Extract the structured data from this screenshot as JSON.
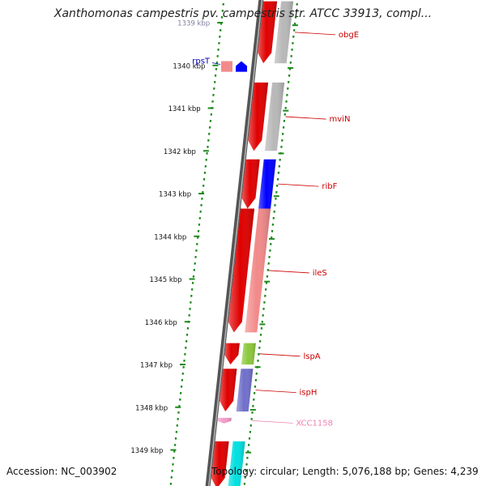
{
  "title": "Xanthomonas campestris pv. campestris str. ATCC 33913, compl...",
  "footer": {
    "accession": "Accession: NC_003902",
    "summary": "Topology: circular; Length: 5,076,188 bp; Genes: 4,239"
  },
  "ruler": {
    "unit": "kbp",
    "ticks": [
      {
        "kbp": 1339,
        "label": "1339 kbp",
        "partial": true
      },
      {
        "kbp": 1340,
        "label": "1340 kbp"
      },
      {
        "kbp": 1341,
        "label": "1341 kbp"
      },
      {
        "kbp": 1342,
        "label": "1342 kbp"
      },
      {
        "kbp": 1343,
        "label": "1343 kbp"
      },
      {
        "kbp": 1344,
        "label": "1344 kbp"
      },
      {
        "kbp": 1345,
        "label": "1345 kbp"
      },
      {
        "kbp": 1346,
        "label": "1346 kbp"
      },
      {
        "kbp": 1347,
        "label": "1347 kbp"
      },
      {
        "kbp": 1348,
        "label": "1348 kbp"
      },
      {
        "kbp": 1349,
        "label": "1349 kbp"
      }
    ]
  },
  "genes": [
    {
      "name": "obgE",
      "start": 1338.5,
      "end": 1339.95,
      "strand": "+",
      "color": "#e00000",
      "cog_color": "#b8b8b8",
      "label_color": "#cc0000"
    },
    {
      "name": "rpsT",
      "start": 1339.9,
      "end": 1340.15,
      "strand": "-",
      "color": "#f28a8a",
      "cog_color": "#0000ff",
      "label_color": "#0000aa",
      "label_side": "left"
    },
    {
      "name": "mviN",
      "start": 1340.4,
      "end": 1342.0,
      "strand": "+",
      "color": "#e00000",
      "cog_color": "#b8b8b8",
      "label_color": "#cc0000"
    },
    {
      "name": "ribF",
      "start": 1342.2,
      "end": 1343.35,
      "strand": "+",
      "color": "#e00000",
      "cog_color": "#0000ff",
      "label_color": "#cc0000"
    },
    {
      "name": "ileS",
      "start": 1343.35,
      "end": 1346.25,
      "strand": "+",
      "color": "#e00000",
      "cog_color": "#f28a8a",
      "label_color": "#cc0000"
    },
    {
      "name": "lspA",
      "start": 1346.5,
      "end": 1347.0,
      "strand": "+",
      "color": "#e00000",
      "cog_color": "#8cc83c",
      "label_color": "#cc0000"
    },
    {
      "name": "ispH",
      "start": 1347.1,
      "end": 1348.1,
      "strand": "+",
      "color": "#e00000",
      "cog_color": "#7070cc",
      "label_color": "#cc0000"
    },
    {
      "name": "XCC1158",
      "start": 1348.25,
      "end": 1348.38,
      "strand": "+",
      "color": "#f29cc8",
      "cog_color": "",
      "label_color": "#f080b0"
    },
    {
      "name": "",
      "start": 1348.8,
      "end": 1349.9,
      "strand": "+",
      "color": "#e00000",
      "cog_color": "#00e0e0",
      "label_color": "#cc0000"
    }
  ]
}
